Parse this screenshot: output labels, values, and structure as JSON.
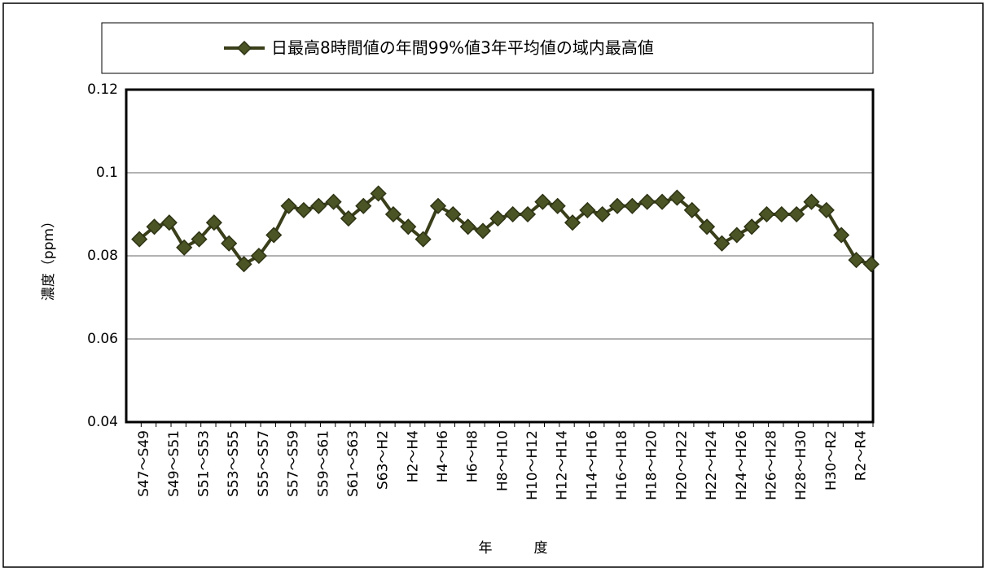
{
  "chart_data": {
    "type": "line",
    "categories": [
      "S47～S49",
      null,
      "S49～S51",
      null,
      "S51～S53",
      null,
      "S53～S55",
      null,
      "S55～S57",
      null,
      "S57～S59",
      null,
      "S59～S61",
      null,
      "S61～S63",
      null,
      "S63～H2",
      null,
      "H2～H4",
      null,
      "H4～H6",
      null,
      "H6～H8",
      null,
      "H8～H10",
      null,
      "H10～H12",
      null,
      "H12～H14",
      null,
      "H14～H16",
      null,
      "H16～H18",
      null,
      "H18～H20",
      null,
      "H20～H22",
      null,
      "H22～H24",
      null,
      "H24～H26",
      null,
      "H26～H28",
      null,
      "H28～H30",
      null,
      "H30～R2",
      null,
      "R2～R4",
      null
    ],
    "series": [
      {
        "name": "日最高8時間値の年間99%値3年平均値の域内最高値",
        "color": "#4a5424",
        "values": [
          0.084,
          0.087,
          0.088,
          0.082,
          0.084,
          0.088,
          0.083,
          0.078,
          0.08,
          0.085,
          0.092,
          0.091,
          0.092,
          0.093,
          0.089,
          0.092,
          0.095,
          0.09,
          0.087,
          0.084,
          0.092,
          0.09,
          0.087,
          0.086,
          0.089,
          0.09,
          0.09,
          0.093,
          0.092,
          0.088,
          0.091,
          0.09,
          0.092,
          0.092,
          0.093,
          0.093,
          0.094,
          0.091,
          0.087,
          0.083,
          0.085,
          0.087,
          0.09,
          0.09,
          0.09,
          0.093,
          0.091,
          0.085,
          0.079,
          0.078
        ]
      }
    ],
    "ylim": [
      0.04,
      0.12
    ],
    "yticks": [
      0.04,
      0.06,
      0.08,
      0.1,
      0.12
    ],
    "y_label": "濃度（ppm）",
    "x_label": "年　　　度",
    "grid": true
  }
}
